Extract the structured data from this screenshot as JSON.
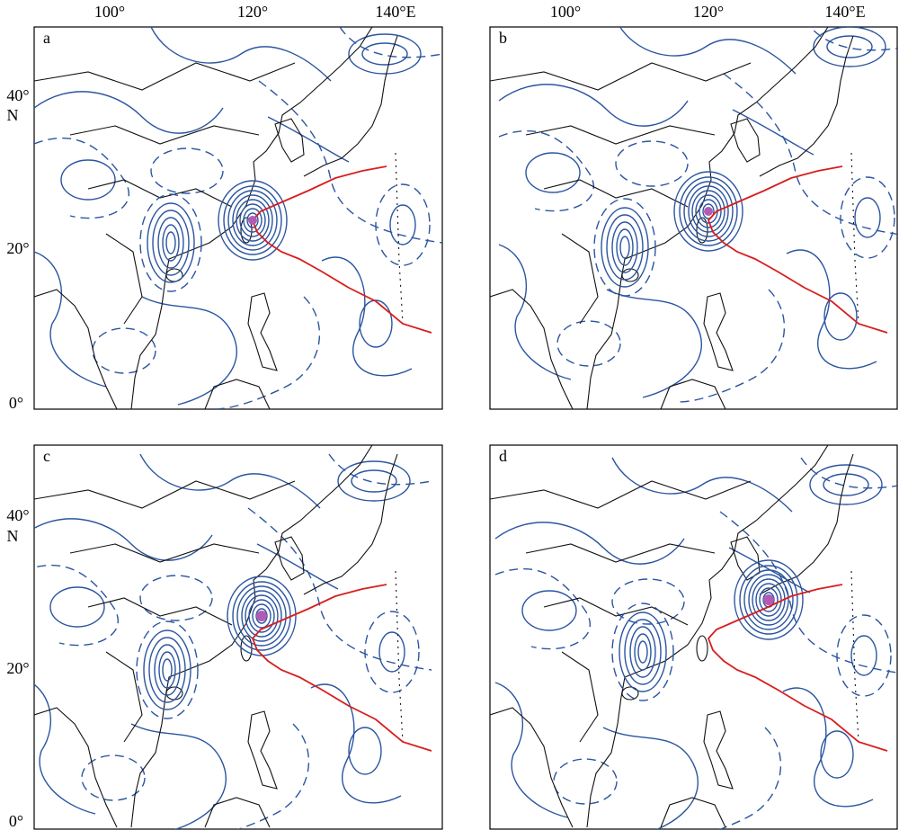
{
  "panels": [
    {
      "label": "a"
    },
    {
      "label": "b"
    },
    {
      "label": "c"
    },
    {
      "label": "d"
    }
  ],
  "top_axis": [
    {
      "labels": [
        "100°",
        "120°",
        "140°E"
      ]
    },
    {
      "labels": [
        "100°",
        "120°",
        "140°E"
      ]
    }
  ],
  "left_axis": [
    {
      "labels": [
        "40°",
        "N",
        "20°",
        "0°"
      ]
    },
    {
      "labels": [
        "40°",
        "N",
        "20°",
        "0°"
      ]
    }
  ]
}
